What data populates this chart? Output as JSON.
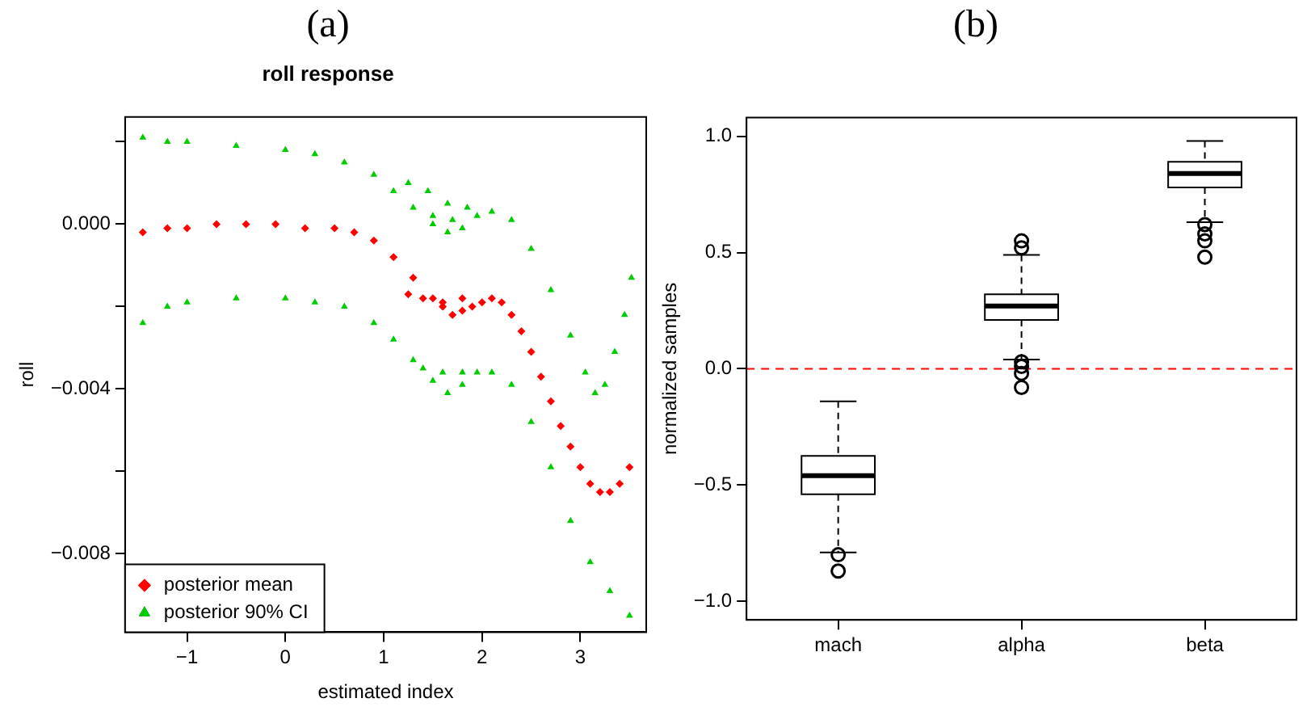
{
  "chart_data": [
    {
      "type": "scatter",
      "title": "(a)",
      "subtitle": "roll response",
      "xlabel": "estimated index",
      "ylabel": "roll",
      "xlim": [
        -1.63,
        3.67
      ],
      "ylim": [
        -0.0099,
        0.0026
      ],
      "xticks": [
        {
          "value": -1,
          "label": "−1"
        },
        0,
        1,
        2,
        3
      ],
      "yticks": [
        {
          "value": 0.002,
          "label": null
        },
        {
          "value": 0,
          "label": "0.000"
        },
        {
          "value": -0.002,
          "label": null
        },
        {
          "value": -0.004,
          "label": "−0.004"
        },
        {
          "value": -0.006,
          "label": null
        },
        {
          "value": -0.008,
          "label": "−0.008"
        }
      ],
      "grid": false,
      "legend": "bottom left",
      "series": [
        {
          "name": "posterior mean",
          "color": "#ff0000",
          "marker": "diamond",
          "x": [
            -1.45,
            -1.2,
            -1,
            -0.7,
            -0.4,
            -0.1,
            0.2,
            0.5,
            0.7,
            0.9,
            1.1,
            1.3,
            1.5,
            1.6,
            1.7,
            1.8,
            1.9,
            2,
            2.1,
            2.2,
            2.3,
            2.4,
            2.5,
            2.6,
            2.7,
            2.8,
            2.9,
            3,
            3.1,
            3.2,
            3.3,
            3.4,
            3.5,
            1.25,
            1.4,
            1.6,
            1.8
          ],
          "values": [
            -0.0002,
            -0.0001,
            -0.0001,
            0,
            0,
            0,
            -0.0001,
            -0.0001,
            -0.0002,
            -0.0004,
            -0.0008,
            -0.0013,
            -0.0018,
            -0.002,
            -0.0022,
            -0.0021,
            -0.002,
            -0.0019,
            -0.0018,
            -0.0019,
            -0.0022,
            -0.0026,
            -0.0031,
            -0.0037,
            -0.0043,
            -0.0049,
            -0.0054,
            -0.0059,
            -0.0063,
            -0.0065,
            -0.0065,
            -0.0063,
            -0.0059,
            -0.0017,
            -0.0018,
            -0.0019,
            -0.0018
          ]
        },
        {
          "name": "posterior 90% CI",
          "color": "#00cc00",
          "marker": "triangle",
          "x": [
            -1.45,
            -1.2,
            -1,
            -0.5,
            0,
            0.3,
            0.6,
            0.9,
            1.1,
            1.3,
            1.5,
            1.65,
            1.8,
            1.95,
            2.1,
            2.3,
            2.5,
            2.7,
            2.9,
            3.05,
            3.15,
            3.25,
            3.35,
            3.45,
            3.52,
            1.25,
            1.45,
            1.65,
            1.85,
            1.5,
            1.7,
            -1.45,
            -1.2,
            -1,
            -0.5,
            0,
            0.3,
            0.6,
            0.9,
            1.1,
            1.3,
            1.5,
            1.65,
            1.8,
            1.95,
            2.1,
            2.3,
            2.5,
            2.7,
            2.9,
            3.1,
            3.3,
            3.5,
            1.4,
            1.6,
            1.8
          ],
          "values": [
            0.0021,
            0.002,
            0.002,
            0.0019,
            0.0018,
            0.0017,
            0.0015,
            0.0012,
            0.0008,
            0.0004,
            0,
            -0.0002,
            -0.0001,
            0.0002,
            0.0003,
            0.0001,
            -0.0006,
            -0.0016,
            -0.0027,
            -0.0036,
            -0.0041,
            -0.0039,
            -0.0031,
            -0.0022,
            -0.0013,
            0.001,
            0.0008,
            0.0005,
            0.0004,
            0.0002,
            0.0001,
            -0.0024,
            -0.002,
            -0.0019,
            -0.0018,
            -0.0018,
            -0.0019,
            -0.002,
            -0.0024,
            -0.0028,
            -0.0033,
            -0.0038,
            -0.0041,
            -0.0039,
            -0.0036,
            -0.0036,
            -0.0039,
            -0.0048,
            -0.0059,
            -0.0072,
            -0.0082,
            -0.0089,
            -0.0095,
            -0.0035,
            -0.0036,
            -0.0036
          ]
        }
      ]
    },
    {
      "type": "box",
      "title": "(b)",
      "ylabel": "normalized samples",
      "categories": [
        "mach",
        "alpha",
        "beta"
      ],
      "ylim": [
        -1.08,
        1.08
      ],
      "yticks": [
        {
          "value": -1,
          "label": "−1.0"
        },
        {
          "value": -0.5,
          "label": "−0.5"
        },
        {
          "value": 0,
          "label": "0.0"
        },
        0.5,
        {
          "value": 1,
          "label": "1.0"
        }
      ],
      "grid": false,
      "boxes": [
        {
          "low": -0.79,
          "q1": -0.54,
          "median": -0.46,
          "q3": -0.375,
          "high": -0.14,
          "outliers": [
            -0.8,
            -0.87
          ]
        },
        {
          "low": 0.04,
          "q1": 0.21,
          "median": 0.27,
          "q3": 0.32,
          "high": 0.49,
          "outliers": [
            0.55,
            0.52,
            0.03,
            0.01,
            -0.02,
            -0.08
          ]
        },
        {
          "low": 0.63,
          "q1": 0.78,
          "median": 0.84,
          "q3": 0.89,
          "high": 0.98,
          "outliers": [
            0.62,
            0.58,
            0.55,
            0.48
          ]
        }
      ],
      "ref_lines": [
        {
          "axis": "y",
          "value": 0,
          "color": "#ff0000",
          "line_style": "dashed"
        }
      ]
    }
  ]
}
